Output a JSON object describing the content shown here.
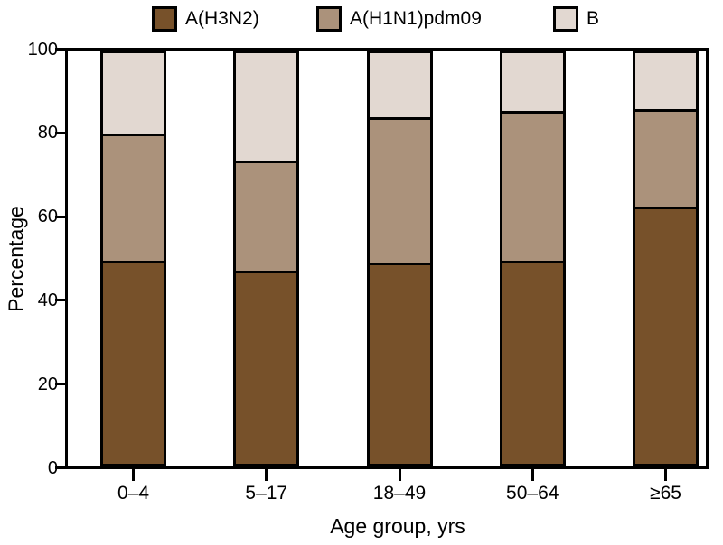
{
  "chart_data": {
    "type": "bar",
    "stacked": true,
    "title": "",
    "categories": [
      "0–4",
      "5–17",
      "18–49",
      "50–64",
      "≥65"
    ],
    "series": [
      {
        "name": "A(H3N2)",
        "color": "#77512A",
        "values": [
          49.5,
          47.0,
          49.0,
          49.5,
          62.5
        ]
      },
      {
        "name": "A(H1N1)pdm09",
        "color": "#AB927B",
        "values": [
          30.5,
          26.5,
          35.0,
          36.0,
          23.5
        ]
      },
      {
        "name": "B",
        "color": "#E2D8D1",
        "values": [
          20.0,
          26.5,
          16.0,
          14.5,
          14.0
        ]
      }
    ],
    "xlabel": "Age group, yrs",
    "ylabel": "Percentage",
    "ylim": [
      0,
      100
    ],
    "yticks": [
      0,
      20,
      40,
      60,
      80,
      100
    ],
    "legend_position": "top",
    "grid": false,
    "axis_color": "#000000",
    "background_color": "#ffffff"
  }
}
